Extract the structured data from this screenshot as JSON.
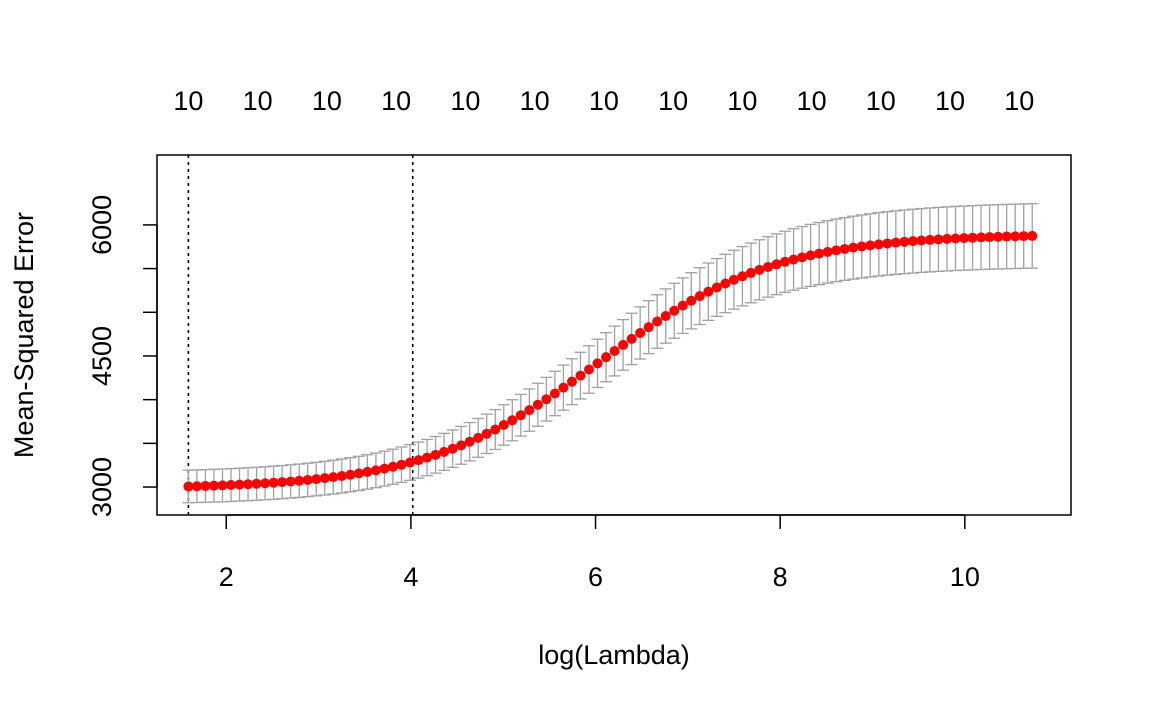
{
  "chart_data": {
    "type": "line",
    "xlabel": "log(Lambda)",
    "ylabel": "Mean-Squared Error",
    "xlim": [
      1.25,
      11.15
    ],
    "ylim": [
      2680,
      6800
    ],
    "x_ticks": [
      2,
      4,
      6,
      8,
      10
    ],
    "x_tick_labels": [
      "2",
      "4",
      "6",
      "8",
      "10"
    ],
    "y_ticks": [
      3000,
      3500,
      4000,
      4500,
      5000,
      5500,
      6000
    ],
    "y_tick_labels": [
      "3000",
      "",
      "",
      "4500",
      "",
      "",
      "6000"
    ],
    "top_axis": {
      "positions": [
        1.59,
        2.34,
        3.09,
        3.84,
        4.59,
        5.34,
        6.09,
        6.84,
        7.59,
        8.34,
        9.09,
        9.84,
        10.59
      ],
      "labels": [
        "10",
        "10",
        "10",
        "10",
        "10",
        "10",
        "10",
        "10",
        "10",
        "10",
        "10",
        "10",
        "10"
      ]
    },
    "vlines": [
      1.59,
      4.02
    ],
    "series": [
      {
        "color": "#ff0000",
        "errorbar_color": "#a0a0a0",
        "x_start": 1.59,
        "x_end": 10.73,
        "n_points": 100,
        "y_min": 2980,
        "y_max": 5895,
        "midpoint": 6.05,
        "steepness": 1.05,
        "se_low": 185,
        "se_high": 370
      }
    ],
    "grid": false,
    "legend": "none"
  }
}
